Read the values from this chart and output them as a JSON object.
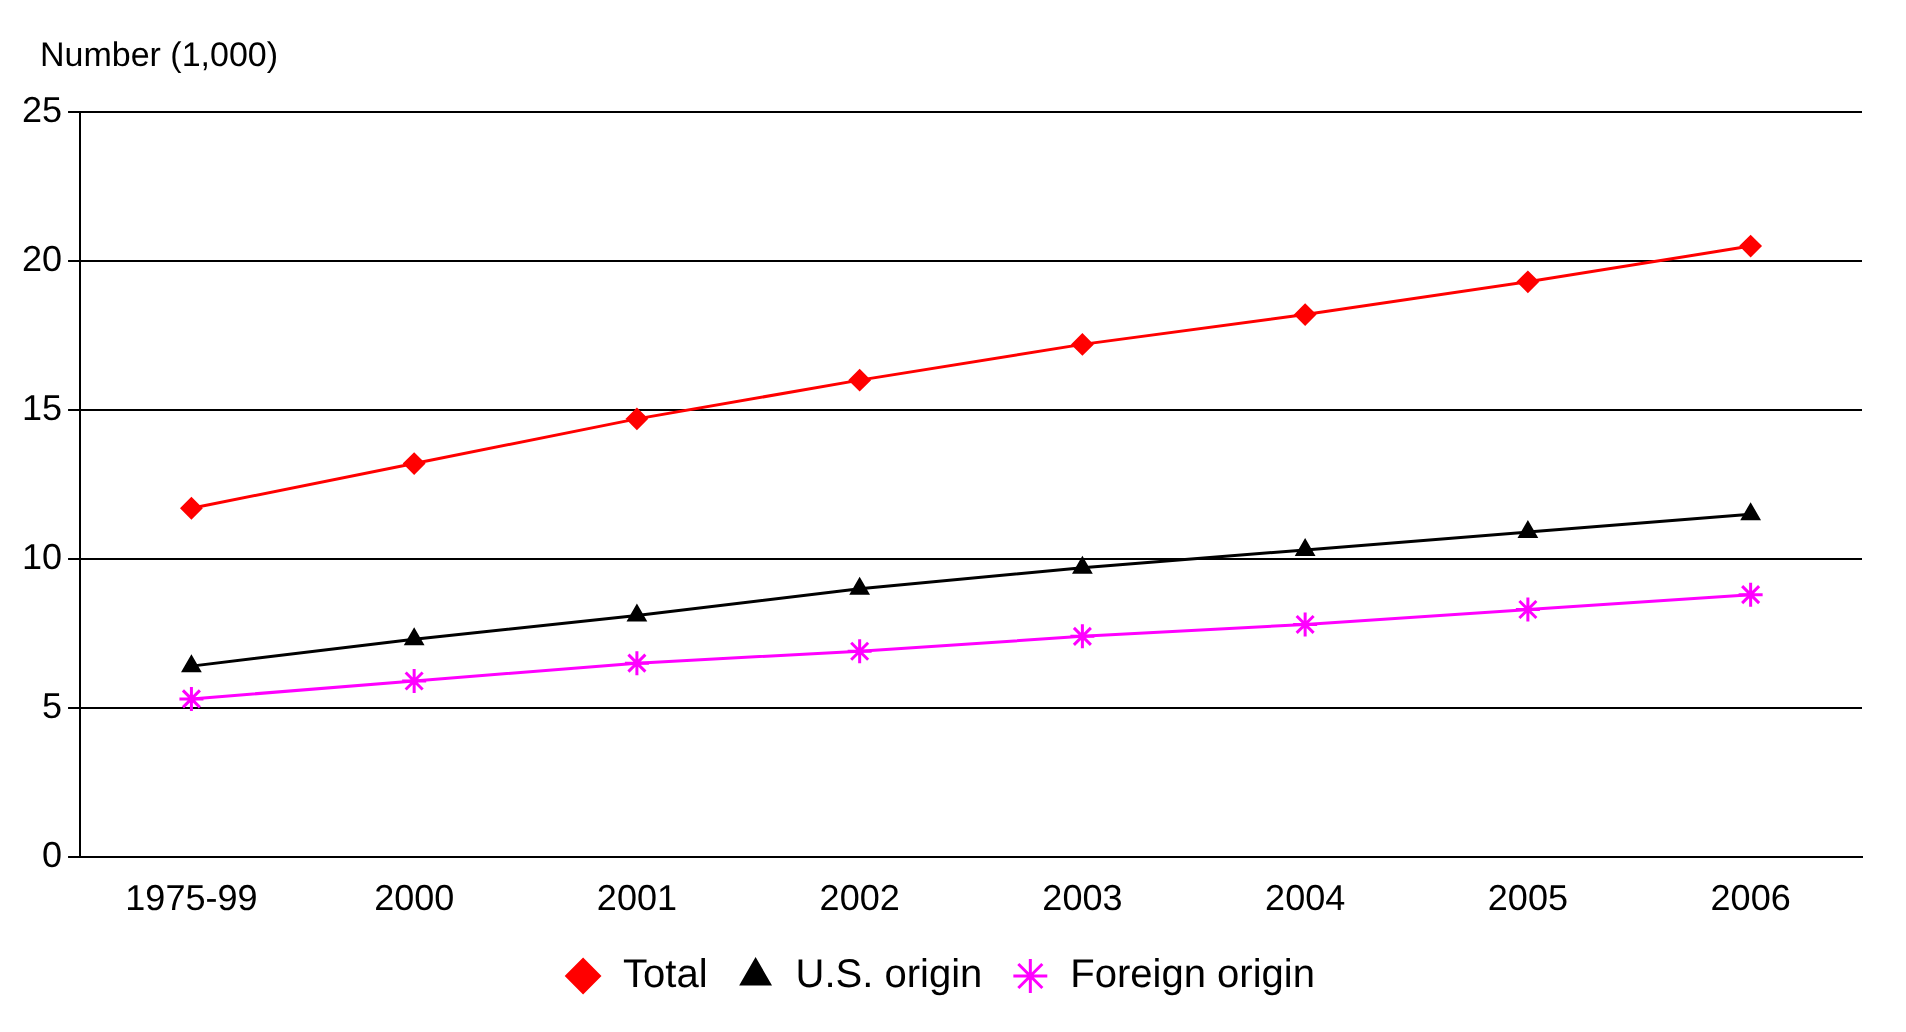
{
  "chart_data": {
    "type": "line",
    "ylabel": "Number (1,000)",
    "categories": [
      "1975-99",
      "2000",
      "2001",
      "2002",
      "2003",
      "2004",
      "2005",
      "2006"
    ],
    "series": [
      {
        "name": "Total",
        "color": "#ff0000",
        "marker": "diamond",
        "values": [
          11.7,
          13.2,
          14.7,
          16.0,
          17.2,
          18.2,
          19.3,
          20.5
        ]
      },
      {
        "name": "U.S. origin",
        "color": "#000000",
        "marker": "triangle",
        "values": [
          6.4,
          7.3,
          8.1,
          9.0,
          9.7,
          10.3,
          10.9,
          11.5
        ]
      },
      {
        "name": "Foreign origin",
        "color": "#ff00ff",
        "marker": "cross",
        "values": [
          5.3,
          5.9,
          6.5,
          6.9,
          7.4,
          7.8,
          8.3,
          8.8
        ]
      }
    ],
    "ylim": [
      0,
      25
    ],
    "yticks": [
      0,
      5,
      10,
      15,
      20,
      25
    ],
    "grid": "y",
    "legend": "bottom",
    "line_style": "solid"
  }
}
